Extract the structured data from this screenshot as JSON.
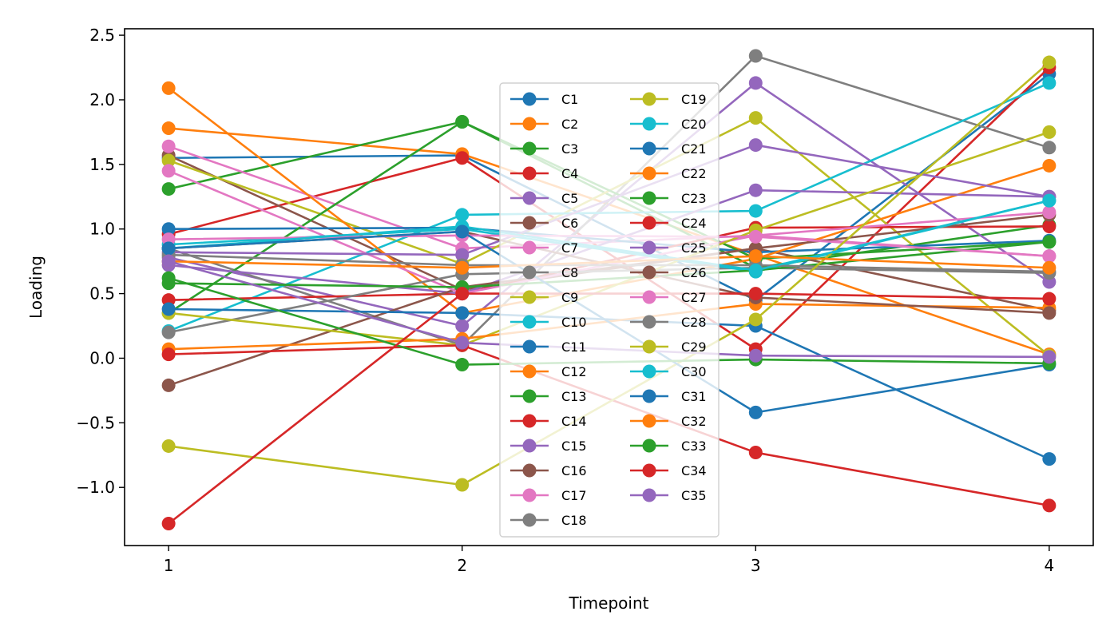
{
  "chart_data": {
    "type": "line",
    "title": "",
    "xlabel": "Timepoint",
    "ylabel": "Loading",
    "x": [
      1,
      2,
      3,
      4
    ],
    "xticks": [
      "1",
      "2",
      "3",
      "4"
    ],
    "yticks": [
      "−1.0",
      "−0.5",
      "0.0",
      "0.5",
      "1.0",
      "1.5",
      "2.0",
      "2.5"
    ],
    "ytick_values": [
      -1.0,
      -0.5,
      0.0,
      0.5,
      1.0,
      1.5,
      2.0,
      2.5
    ],
    "xlim": [
      0.85,
      4.15
    ],
    "ylim": [
      -1.45,
      2.55
    ],
    "grid": false,
    "legend": {
      "placement": "center",
      "columns": 2
    },
    "series": [
      {
        "name": "C1",
        "color": "#1f77b4",
        "values": [
          1.55,
          1.57,
          0.45,
          2.2
        ]
      },
      {
        "name": "C2",
        "color": "#ff7f0e",
        "values": [
          1.78,
          1.58,
          0.8,
          0.03
        ]
      },
      {
        "name": "C3",
        "color": "#2ca02c",
        "values": [
          1.31,
          1.83,
          0.7,
          1.03
        ]
      },
      {
        "name": "C4",
        "color": "#d62728",
        "values": [
          0.96,
          1.55,
          0.07,
          2.25
        ]
      },
      {
        "name": "C5",
        "color": "#9467bd",
        "values": [
          0.78,
          0.25,
          2.13,
          0.59
        ]
      },
      {
        "name": "C6",
        "color": "#8c564b",
        "values": [
          1.57,
          0.53,
          0.85,
          0.37
        ]
      },
      {
        "name": "C7",
        "color": "#e377c2",
        "values": [
          1.64,
          0.85,
          0.95,
          0.79
        ]
      },
      {
        "name": "C8",
        "color": "#7f7f7f",
        "values": [
          0.85,
          0.1,
          2.34,
          1.63
        ]
      },
      {
        "name": "C9",
        "color": "#bcbd22",
        "values": [
          1.53,
          0.73,
          1.86,
          0.02
        ]
      },
      {
        "name": "C10",
        "color": "#17becf",
        "values": [
          0.21,
          1.11,
          1.14,
          2.13
        ]
      },
      {
        "name": "C11",
        "color": "#1f77b4",
        "values": [
          1.0,
          1.01,
          0.82,
          0.91
        ]
      },
      {
        "name": "C12",
        "color": "#ff7f0e",
        "values": [
          2.09,
          0.35,
          0.77,
          1.49
        ]
      },
      {
        "name": "C13",
        "color": "#2ca02c",
        "values": [
          0.35,
          1.83,
          0.77,
          0.9
        ]
      },
      {
        "name": "C14",
        "color": "#d62728",
        "values": [
          0.45,
          0.5,
          1.01,
          1.02
        ]
      },
      {
        "name": "C15",
        "color": "#9467bd",
        "values": [
          0.72,
          0.5,
          1.3,
          1.25
        ]
      },
      {
        "name": "C16",
        "color": "#8c564b",
        "values": [
          -0.21,
          0.55,
          0.85,
          1.11
        ]
      },
      {
        "name": "C17",
        "color": "#e377c2",
        "values": [
          1.45,
          0.5,
          0.95,
          1.13
        ]
      },
      {
        "name": "C18",
        "color": "#7f7f7f",
        "values": [
          0.2,
          0.65,
          0.7,
          0.66
        ]
      },
      {
        "name": "C19",
        "color": "#bcbd22",
        "values": [
          0.35,
          0.1,
          0.99,
          1.75
        ]
      },
      {
        "name": "C20",
        "color": "#17becf",
        "values": [
          0.88,
          1.0,
          0.67,
          1.22
        ]
      },
      {
        "name": "C21",
        "color": "#1f77b4",
        "values": [
          0.38,
          0.35,
          0.25,
          -0.78
        ]
      },
      {
        "name": "C22",
        "color": "#ff7f0e",
        "values": [
          0.07,
          0.15,
          0.42,
          0.39
        ]
      },
      {
        "name": "C23",
        "color": "#2ca02c",
        "values": [
          0.58,
          0.55,
          0.68,
          0.9
        ]
      },
      {
        "name": "C24",
        "color": "#d62728",
        "values": [
          0.03,
          0.1,
          -0.73,
          -1.14
        ]
      },
      {
        "name": "C25",
        "color": "#9467bd",
        "values": [
          0.82,
          0.8,
          1.65,
          1.25
        ]
      },
      {
        "name": "C26",
        "color": "#8c564b",
        "values": [
          0.85,
          0.98,
          0.47,
          0.35
        ]
      },
      {
        "name": "C27",
        "color": "#e377c2",
        "values": [
          0.92,
          0.95,
          0.94,
          0.79
        ]
      },
      {
        "name": "C28",
        "color": "#7f7f7f",
        "values": [
          0.8,
          0.72,
          0.72,
          0.67
        ]
      },
      {
        "name": "C29",
        "color": "#bcbd22",
        "values": [
          -0.68,
          -0.98,
          0.3,
          2.29
        ]
      },
      {
        "name": "C30",
        "color": "#17becf",
        "values": [
          0.85,
          1.02,
          0.68,
          1.22
        ]
      },
      {
        "name": "C31",
        "color": "#1f77b4",
        "values": [
          0.85,
          0.98,
          -0.42,
          -0.05
        ]
      },
      {
        "name": "C32",
        "color": "#ff7f0e",
        "values": [
          0.75,
          0.7,
          0.79,
          0.7
        ]
      },
      {
        "name": "C33",
        "color": "#2ca02c",
        "values": [
          0.62,
          -0.05,
          -0.01,
          -0.04
        ]
      },
      {
        "name": "C34",
        "color": "#d62728",
        "values": [
          -1.28,
          0.5,
          0.5,
          0.46
        ]
      },
      {
        "name": "C35",
        "color": "#9467bd",
        "values": [
          0.75,
          0.12,
          0.02,
          0.01
        ]
      }
    ]
  }
}
